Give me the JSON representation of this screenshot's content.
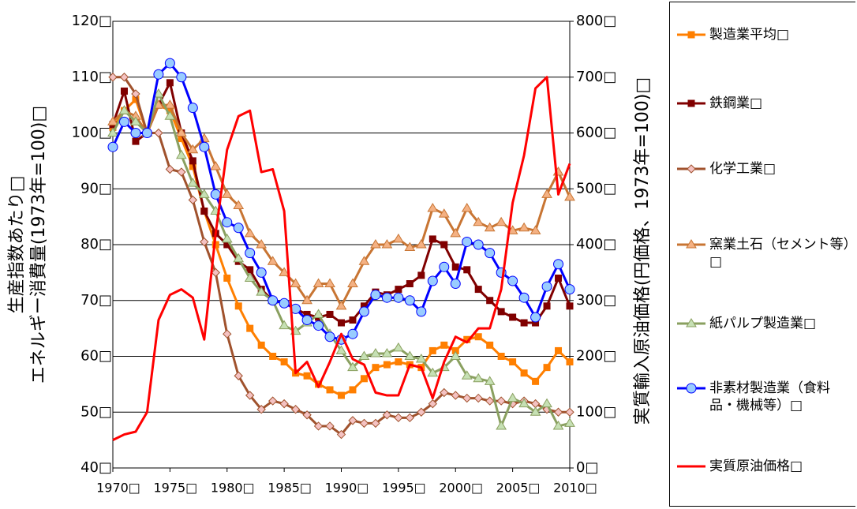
{
  "chart_data": {
    "type": "line",
    "ylabel": [
      "生産指数あたり□",
      "エネルギー消費量(1973年=100)□"
    ],
    "y2label": "実質輸入原油価格(円価格、1973年=100)□",
    "x": [
      1970,
      1971,
      1972,
      1973,
      1974,
      1975,
      1976,
      1977,
      1978,
      1979,
      1980,
      1981,
      1982,
      1983,
      1984,
      1985,
      1986,
      1987,
      1988,
      1989,
      1990,
      1991,
      1992,
      1993,
      1994,
      1995,
      1996,
      1997,
      1998,
      1999,
      2000,
      2001,
      2002,
      2003,
      2004,
      2005,
      2006,
      2007,
      2008,
      2009,
      2010
    ],
    "xlim": [
      1970,
      2010
    ],
    "xticks": [
      {
        "value": 1970,
        "label": "1970□"
      },
      {
        "value": 1975,
        "label": "1975□"
      },
      {
        "value": 1980,
        "label": "1980□"
      },
      {
        "value": 1985,
        "label": "1985□"
      },
      {
        "value": 1990,
        "label": "1990□"
      },
      {
        "value": 1995,
        "label": "1995□"
      },
      {
        "value": 2000,
        "label": "2000□"
      },
      {
        "value": 2005,
        "label": "2005□"
      },
      {
        "value": 2010,
        "label": "2010□"
      }
    ],
    "ylim": [
      40,
      120
    ],
    "yticks": [
      {
        "value": 40,
        "label": "40□"
      },
      {
        "value": 50,
        "label": "50□"
      },
      {
        "value": 60,
        "label": "60□"
      },
      {
        "value": 70,
        "label": "70□"
      },
      {
        "value": 80,
        "label": "80□"
      },
      {
        "value": 90,
        "label": "90□"
      },
      {
        "value": 100,
        "label": "100□"
      },
      {
        "value": 110,
        "label": "110□"
      },
      {
        "value": 120,
        "label": "120□"
      }
    ],
    "y2lim": [
      0,
      800
    ],
    "y2ticks": [
      {
        "value": 0,
        "label": "0□"
      },
      {
        "value": 100,
        "label": "100□"
      },
      {
        "value": 200,
        "label": "200□"
      },
      {
        "value": 300,
        "label": "300□"
      },
      {
        "value": 400,
        "label": "400□"
      },
      {
        "value": 500,
        "label": "500□"
      },
      {
        "value": 600,
        "label": "600□"
      },
      {
        "value": 700,
        "label": "700□"
      },
      {
        "value": 800,
        "label": "800□"
      }
    ],
    "grid": true,
    "legend": "right",
    "series": [
      {
        "name": "製造業平均□",
        "color": "#ff7f00",
        "marker": "square",
        "marker_fill": "#ff7f00",
        "values": [
          101,
          104,
          106,
          100,
          105,
          104,
          99,
          94,
          86,
          80,
          74,
          69,
          65,
          62,
          60,
          59,
          57,
          56.5,
          55,
          54,
          53,
          54,
          56,
          58,
          58.5,
          59,
          58.5,
          58,
          61,
          62,
          61,
          63,
          63.5,
          62,
          60,
          59,
          57,
          55.5,
          58,
          61,
          59
        ]
      },
      {
        "name": "鉄鋼業□",
        "color": "#800000",
        "marker": "square",
        "marker_fill": "#800000",
        "values": [
          101.5,
          107.5,
          98.5,
          100,
          105,
          109,
          100,
          95,
          86,
          82,
          80,
          77,
          75.5,
          72,
          70,
          69.5,
          68.5,
          67.5,
          67,
          67.5,
          66,
          66.5,
          69,
          71.5,
          71,
          72,
          73,
          74.5,
          81,
          80,
          76,
          75.5,
          72,
          70,
          68,
          67,
          66,
          66,
          69,
          74,
          69
        ]
      },
      {
        "name": "化学工業□",
        "color": "#a0522d",
        "marker": "diamond",
        "marker_fill": "#f4c2c2",
        "values": [
          110,
          110,
          107,
          100,
          100,
          93.5,
          93,
          88,
          80.5,
          75,
          64,
          56.5,
          53,
          50.5,
          52,
          51.5,
          50.5,
          49.5,
          47.5,
          47.5,
          46,
          48.5,
          48,
          48,
          49.5,
          49,
          49,
          50,
          51.5,
          53.5,
          53,
          52.5,
          52.5,
          52,
          52,
          51.5,
          52,
          51.5,
          50.5,
          50,
          50
        ]
      },
      {
        "name": "窯業土石（セメント等）□",
        "color": "#c87533",
        "marker": "triangle",
        "marker_fill": "#f4b183",
        "values": [
          102,
          104,
          103,
          100,
          105,
          105,
          100,
          97,
          99,
          94,
          89,
          87,
          82,
          80,
          77,
          75,
          73,
          70,
          73,
          73,
          69,
          73,
          77,
          80,
          80,
          81,
          79.5,
          80,
          86.5,
          85.5,
          82,
          86.5,
          84,
          83,
          84,
          82.5,
          83,
          82.5,
          89,
          93,
          88.5
        ]
      },
      {
        "name": "紙パルプ製造業□",
        "color": "#8aa060",
        "marker": "triangle",
        "marker_fill": "#c6e0b4",
        "values": [
          100,
          104,
          102,
          100,
          107,
          103,
          96,
          91,
          89,
          86,
          81,
          77.5,
          74,
          71.5,
          70,
          65.5,
          64.5,
          66,
          67.5,
          64,
          61,
          58,
          60,
          60.5,
          60.5,
          61.5,
          60,
          59.5,
          57,
          58,
          60,
          56.5,
          56,
          55.5,
          47.5,
          52.5,
          51.5,
          50,
          51.5,
          47.5,
          48
        ]
      },
      {
        "name": "非素材製造業（食料品・機械等）□",
        "color": "#0000ff",
        "marker": "circle",
        "marker_fill": "#99ccff",
        "values": [
          97.5,
          102,
          100,
          100,
          110.5,
          112.5,
          110,
          104.5,
          97.5,
          89,
          84,
          83,
          78.5,
          75,
          70,
          69.5,
          68.5,
          66.5,
          65.5,
          63.5,
          63,
          64,
          68,
          71,
          70.5,
          70.5,
          70,
          68,
          73.5,
          76,
          73,
          80.5,
          80,
          78.5,
          75,
          73.5,
          70.5,
          67,
          72.5,
          76.5,
          72
        ]
      },
      {
        "name": "実質原油価格□",
        "color": "#ff0000",
        "marker": "none",
        "axis": "y2",
        "values": [
          50,
          60,
          65,
          100,
          265,
          310,
          320,
          305,
          230,
          420,
          570,
          630,
          640,
          530,
          535,
          460,
          170,
          190,
          145,
          190,
          240,
          195,
          185,
          135,
          130,
          130,
          185,
          180,
          125,
          190,
          235,
          225,
          250,
          250,
          320,
          475,
          560,
          680,
          700,
          490,
          545
        ]
      }
    ]
  }
}
